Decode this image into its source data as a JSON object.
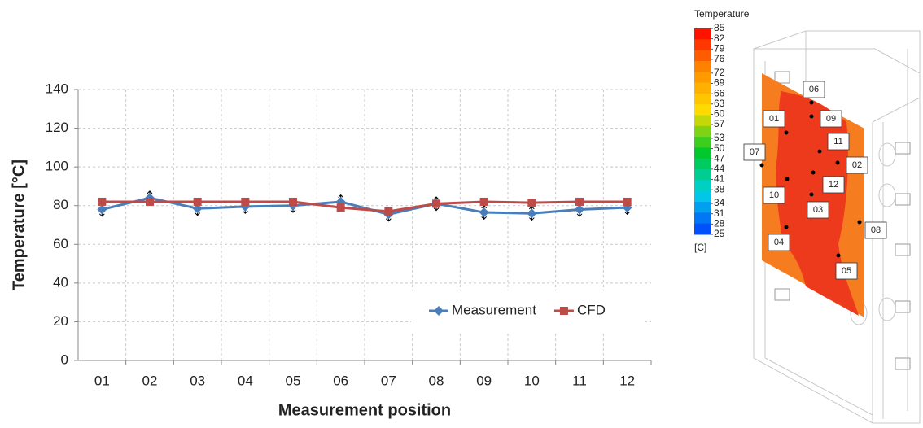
{
  "chart_data": {
    "type": "line",
    "y_label": "Temperature [°C]",
    "x_label": "Measurement position",
    "categories": [
      "01",
      "02",
      "03",
      "04",
      "05",
      "06",
      "07",
      "08",
      "09",
      "10",
      "11",
      "12"
    ],
    "series": [
      {
        "name": "Measurement",
        "color": "#4a7ebb",
        "marker": "diamond",
        "values": [
          78,
          84,
          78.5,
          79.5,
          80,
          82,
          75.5,
          81,
          76.5,
          76,
          78,
          79
        ],
        "errors": [
          3.5,
          3.5,
          3.5,
          3.5,
          3.5,
          3.5,
          3.5,
          3.5,
          3.5,
          3.5,
          3.5,
          3.5
        ]
      },
      {
        "name": "CFD",
        "color": "#be4b48",
        "marker": "square",
        "values": [
          82,
          82,
          82,
          82,
          82,
          79,
          77,
          81,
          82,
          81.5,
          82,
          82
        ]
      }
    ],
    "ylim": [
      0,
      140
    ],
    "yticks": [
      0,
      20,
      40,
      60,
      80,
      100,
      120,
      140
    ],
    "grid": true
  },
  "figure": {
    "colorbar": {
      "title": "Temperature",
      "unit": "[C]",
      "ticks": [
        85,
        82,
        79,
        76,
        72,
        69,
        66,
        63,
        60,
        57,
        53,
        50,
        47,
        44,
        41,
        38,
        34,
        31,
        28,
        25
      ]
    },
    "points": [
      "06",
      "01",
      "09",
      "11",
      "07",
      "02",
      "12",
      "10",
      "03",
      "08",
      "04",
      "05"
    ]
  }
}
